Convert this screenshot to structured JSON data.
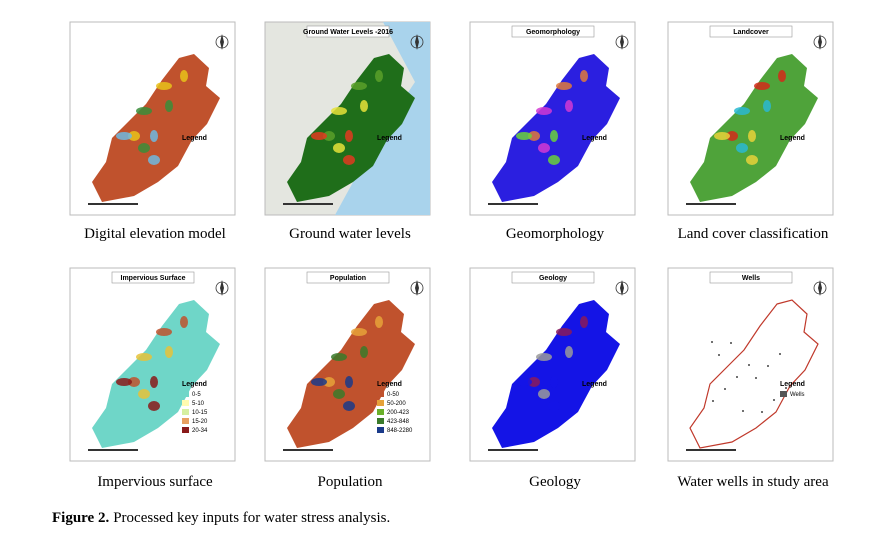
{
  "panels": [
    {
      "caption": "Digital elevation model",
      "legend": {
        "title": "Legend"
      }
    },
    {
      "title": "Ground Water Levels -2016",
      "caption": "Ground water levels",
      "legend": {
        "title": "Legend"
      }
    },
    {
      "title": "Geomorphology",
      "caption": "Geomorphology",
      "legend": {
        "title": "Legend"
      }
    },
    {
      "title": "Landcover",
      "caption": "Land cover classification",
      "legend": {
        "title": "Legend"
      }
    },
    {
      "title": "Impervious Surface",
      "caption": "Impervious surface",
      "legend": {
        "title": "Legend",
        "items": [
          "0-5",
          "5-10",
          "10-15",
          "15-20",
          "20-34"
        ]
      }
    },
    {
      "title": "Population",
      "caption": "Population",
      "legend": {
        "title": "Legend",
        "items": [
          "0-50",
          "50-200",
          "200-423",
          "423-848",
          "848-2280"
        ]
      }
    },
    {
      "title": "Geology",
      "caption": "Geology",
      "legend": {
        "title": "Legend"
      }
    },
    {
      "title": "Wells",
      "caption": "Water wells in study area",
      "legend": {
        "title": "Legend",
        "items": [
          "Wells"
        ]
      }
    }
  ],
  "figure": {
    "label": "Figure  2.",
    "text": "Processed key inputs for water stress analysis."
  }
}
